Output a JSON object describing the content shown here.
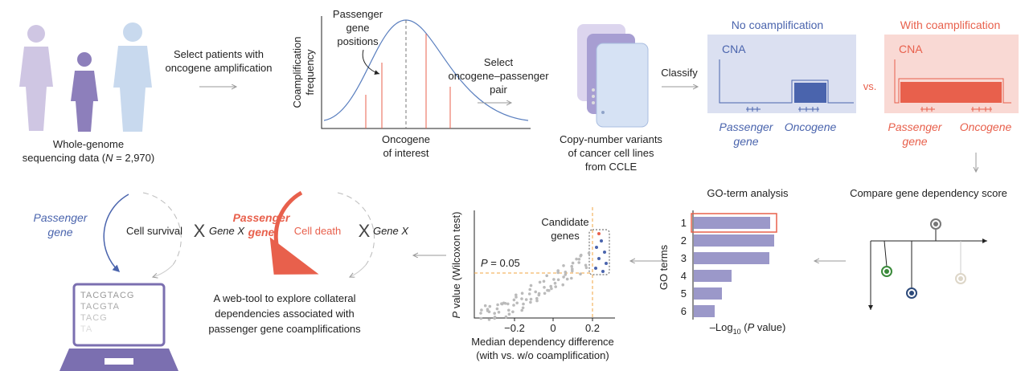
{
  "patients": {
    "caption_line1": "Whole-genome",
    "caption_pre": "sequencing data (",
    "caption_italic": "N",
    "caption_post": " = 2,970)"
  },
  "select_patients": {
    "line1": "Select patients with",
    "line2": "oncogene amplification"
  },
  "frequency_plot": {
    "y_label_line1": "Coamplification",
    "y_label_line2": "frequency",
    "annotation": [
      "Passenger",
      "gene",
      "positions"
    ],
    "x_label_line1": "Oncogene",
    "x_label_line2": "of interest"
  },
  "select_pair": {
    "line1": "Select",
    "line2": "oncogene–passenger",
    "line3": "pair"
  },
  "ccle": {
    "line1": "Copy-number variants",
    "line2": "of cancer cell lines",
    "line3": "from CCLE"
  },
  "classify": "Classify",
  "no_coamp": {
    "title": "No coamplification",
    "cna": "CNA",
    "passenger": [
      "Passenger",
      "gene"
    ],
    "oncogene": "Oncogene"
  },
  "vs": "vs.",
  "with_coamp": {
    "title": "With coamplification",
    "cna": "CNA",
    "passenger": [
      "Passenger",
      "gene"
    ],
    "oncogene": "Oncogene"
  },
  "compare": "Compare gene dependency score",
  "go_analysis": {
    "title": "GO-term analysis",
    "y_label": "GO terms",
    "terms": [
      "1",
      "2",
      "3",
      "4",
      "5",
      "6"
    ],
    "x_label_pre": "–Log",
    "x_label_sub": "10",
    "x_label_mid": " (",
    "x_label_italic": "P",
    "x_label_post": " value)"
  },
  "volcano": {
    "candidate": [
      "Candidate",
      "genes"
    ],
    "threshold_italic": "P",
    "threshold_rest": " = 0.05",
    "y_label_italic": "P",
    "y_label_rest": " value (Wilcoxon test)",
    "xticks": [
      "−0.2",
      "0",
      "0.2"
    ],
    "x_label_line1": "Median dependency difference",
    "x_label_line2": "(with vs. w/o coamplification)"
  },
  "survival": {
    "passenger": [
      "Passenger",
      "gene"
    ],
    "outcome": "Cell survival",
    "x": "X",
    "gene": "Gene X"
  },
  "death": {
    "passenger": [
      "Passenger",
      "gene"
    ],
    "outcome": "Cell death",
    "x": "X",
    "gene": "Gene X"
  },
  "laptop": {
    "sequences": [
      "TACGTACG",
      "TACGTA",
      "TACG",
      "TA"
    ]
  },
  "webtool": {
    "line1": "A web-tool to explore collateral",
    "line2": "dependencies associated with",
    "line3": "passenger gene coamplifications"
  }
}
